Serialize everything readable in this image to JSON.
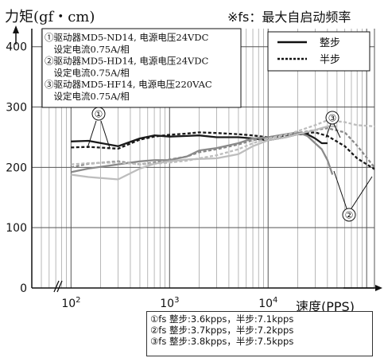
{
  "chart_data": {
    "type": "line",
    "y_axis_label": "力矩(gf・cm)",
    "x_axis_label": "速度(PPS)",
    "note_top_right": "※fs：最大自启动频率",
    "x_scale": "log",
    "x_range_pps": [
      40,
      120000
    ],
    "y_range": [
      0,
      430
    ],
    "y_ticks": [
      "0",
      "100",
      "200",
      "300",
      "400"
    ],
    "x_ticks": [
      {
        "label": "10",
        "exp": "2",
        "value": 100
      },
      {
        "label": "10",
        "exp": "3",
        "value": 1000
      },
      {
        "label": "10",
        "exp": "4",
        "value": 10000
      }
    ],
    "grid": true,
    "legend": {
      "position": "top-right",
      "entries": [
        {
          "label": "整步",
          "style": "solid"
        },
        {
          "label": "半步",
          "style": "dashed"
        }
      ]
    },
    "driver_box": [
      "①驱动器MD5-ND14, 电源电压24VDC",
      "　设定电流0.75A/相",
      "②驱动器MD5-HD14, 电源电压24VDC",
      "　设定电流0.75A/相",
      "③驱动器MD5-HF14, 电源电压220VAC",
      "　设定电流0.75A/相"
    ],
    "callouts": [
      "①",
      "②",
      "③"
    ],
    "series": [
      {
        "name": "① 整步",
        "style": "solid",
        "color": "#1a1a1a",
        "x": [
          100,
          150,
          300,
          500,
          700,
          1000,
          1500,
          2000,
          3000,
          5000,
          7000,
          10000,
          15000,
          20000,
          25000,
          30000,
          35000,
          40000
        ],
        "y": [
          243,
          244,
          235,
          248,
          253,
          251,
          252,
          253,
          250,
          250,
          248,
          245,
          250,
          255,
          255,
          248,
          240,
          240
        ]
      },
      {
        "name": "① 半步",
        "style": "dashed",
        "color": "#1a1a1a",
        "x": [
          100,
          150,
          300,
          500,
          700,
          1000,
          1500,
          2000,
          3000,
          5000,
          7000,
          10000,
          15000,
          20000,
          30000,
          40000,
          60000,
          80000,
          120000
        ],
        "y": [
          233,
          234,
          231,
          246,
          251,
          254,
          256,
          258,
          257,
          255,
          253,
          250,
          252,
          256,
          258,
          252,
          235,
          215,
          197
        ]
      },
      {
        "name": "② 整步",
        "style": "solid",
        "color": "#8a8a8a",
        "x": [
          100,
          150,
          300,
          500,
          700,
          1000,
          1500,
          2000,
          3000,
          5000,
          7000,
          10000,
          15000,
          20000,
          25000,
          30000,
          35000,
          40000,
          45000
        ],
        "y": [
          192,
          198,
          205,
          210,
          212,
          212,
          218,
          228,
          232,
          240,
          248,
          250,
          255,
          258,
          252,
          240,
          230,
          212,
          188
        ]
      },
      {
        "name": "② 半步",
        "style": "dashed",
        "color": "#8a8a8a",
        "x": [
          100,
          150,
          300,
          500,
          700,
          1000,
          1500,
          2000,
          3000,
          5000,
          7000,
          10000,
          15000,
          20000,
          30000,
          40000,
          60000,
          80000,
          120000
        ],
        "y": [
          200,
          206,
          210,
          205,
          208,
          213,
          218,
          225,
          230,
          238,
          245,
          250,
          254,
          257,
          262,
          265,
          258,
          236,
          200
        ]
      },
      {
        "name": "③ 整步",
        "style": "solid",
        "color": "#bdbdbd",
        "x": [
          100,
          150,
          300,
          500,
          700,
          1000,
          1500,
          2000,
          3000,
          5000,
          7000,
          10000,
          15000,
          20000,
          30000,
          40000,
          50000
        ],
        "y": [
          188,
          184,
          180,
          198,
          206,
          210,
          213,
          214,
          215,
          222,
          235,
          245,
          250,
          255,
          262,
          268,
          268
        ]
      },
      {
        "name": "③ 半步",
        "style": "dashed",
        "color": "#bdbdbd",
        "x": [
          100,
          150,
          300,
          500,
          700,
          1000,
          1500,
          2000,
          3000,
          5000,
          7000,
          10000,
          15000,
          20000,
          30000,
          40000,
          60000,
          80000,
          120000
        ],
        "y": [
          205,
          207,
          208,
          205,
          206,
          208,
          211,
          215,
          220,
          230,
          240,
          248,
          254,
          260,
          270,
          278,
          275,
          270,
          268
        ]
      }
    ]
  },
  "notes": [
    "①fs 整步:3.6kpps，半步:7.1kpps",
    "②fs 整步:3.7kpps，半步:7.2kpps",
    "③fs 整步:3.8kpps，半步:7.5kpps"
  ]
}
